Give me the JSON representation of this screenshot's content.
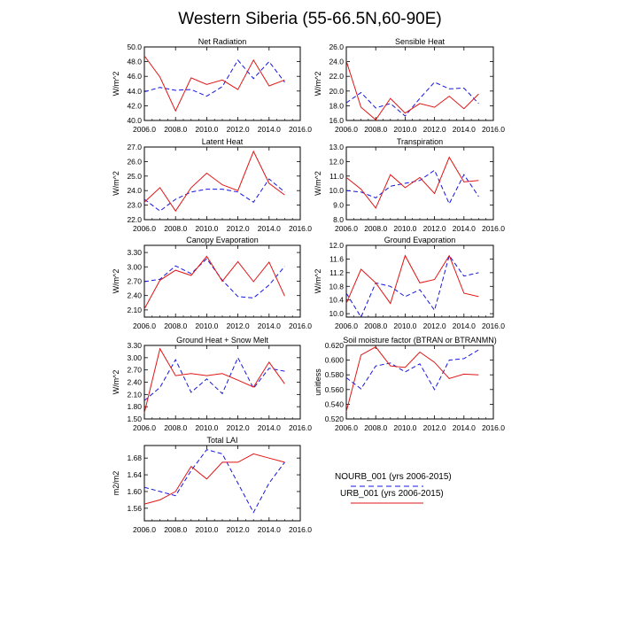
{
  "title": "Western Siberia (55-66.5N,60-90E)",
  "colors": {
    "nourb": "#1515e0",
    "urb": "#e01515",
    "axis": "#000000"
  },
  "legend": {
    "entries": [
      {
        "label": "NOURB_001 (yrs 2006-2015)",
        "color": "#1515e0",
        "dash": "dashed"
      },
      {
        "label": "URB_001 (yrs 2006-2015)",
        "color": "#e01515",
        "dash": "solid"
      }
    ]
  },
  "chart_data": [
    {
      "type": "line",
      "title": "Net Radiation",
      "ylabel": "W/m^2",
      "xlim": [
        2006,
        2016
      ],
      "ylim": [
        40,
        50
      ],
      "xticks": [
        "2006.0",
        "2008.0",
        "2010.0",
        "2012.0",
        "2014.0",
        "2016.0"
      ],
      "yticks": [
        "40.0",
        "42.0",
        "44.0",
        "46.0",
        "48.0",
        "50.0"
      ],
      "x": [
        2006,
        2007,
        2008,
        2009,
        2010,
        2011,
        2012,
        2013,
        2014,
        2015
      ],
      "series": [
        {
          "name": "NOURB_001 (yrs 2006-2015)",
          "values": [
            43.9,
            44.5,
            44.1,
            44.2,
            43.3,
            44.6,
            48.2,
            45.7,
            48.0,
            45.2
          ]
        },
        {
          "name": "URB_001 (yrs 2006-2015)",
          "values": [
            48.8,
            45.9,
            41.3,
            45.8,
            44.9,
            45.5,
            44.2,
            48.2,
            44.7,
            45.5
          ]
        }
      ]
    },
    {
      "type": "line",
      "title": "Sensible Heat",
      "ylabel": "W/m^2",
      "xlim": [
        2006,
        2016
      ],
      "ylim": [
        16,
        26
      ],
      "xticks": [
        "2006.0",
        "2008.0",
        "2010.0",
        "2012.0",
        "2014.0",
        "2016.0"
      ],
      "yticks": [
        "16.0",
        "18.0",
        "20.0",
        "22.0",
        "24.0",
        "26.0"
      ],
      "x": [
        2006,
        2007,
        2008,
        2009,
        2010,
        2011,
        2012,
        2013,
        2014,
        2015
      ],
      "series": [
        {
          "name": "NOURB_001 (yrs 2006-2015)",
          "values": [
            18.4,
            19.8,
            17.7,
            18.3,
            16.6,
            19.0,
            21.2,
            20.3,
            20.4,
            18.3
          ]
        },
        {
          "name": "URB_001 (yrs 2006-2015)",
          "values": [
            24.1,
            17.8,
            16.1,
            19.0,
            17.0,
            18.3,
            17.8,
            19.3,
            17.6,
            19.6
          ]
        }
      ]
    },
    {
      "type": "line",
      "title": "Latent Heat",
      "ylabel": "W/m^2",
      "xlim": [
        2006,
        2016
      ],
      "ylim": [
        22,
        27
      ],
      "xticks": [
        "2006.0",
        "2008.0",
        "2010.0",
        "2012.0",
        "2014.0",
        "2016.0"
      ],
      "yticks": [
        "22.0",
        "23.0",
        "24.0",
        "25.0",
        "26.0",
        "27.0"
      ],
      "x": [
        2006,
        2007,
        2008,
        2009,
        2010,
        2011,
        2012,
        2013,
        2014,
        2015
      ],
      "series": [
        {
          "name": "NOURB_001 (yrs 2006-2015)",
          "values": [
            23.4,
            22.6,
            23.4,
            23.9,
            24.1,
            24.1,
            23.9,
            23.2,
            24.8,
            23.9
          ]
        },
        {
          "name": "URB_001 (yrs 2006-2015)",
          "values": [
            23.2,
            24.2,
            22.6,
            24.2,
            25.2,
            24.4,
            24.0,
            26.7,
            24.5,
            23.7
          ]
        }
      ]
    },
    {
      "type": "line",
      "title": "Transpiration",
      "ylabel": "W/m^2",
      "xlim": [
        2006,
        2016
      ],
      "ylim": [
        8,
        13
      ],
      "xticks": [
        "2006.0",
        "2008.0",
        "2010.0",
        "2012.0",
        "2014.0",
        "2016.0"
      ],
      "yticks": [
        "8.0",
        "9.0",
        "10.0",
        "11.0",
        "12.0",
        "13.0"
      ],
      "x": [
        2006,
        2007,
        2008,
        2009,
        2010,
        2011,
        2012,
        2013,
        2014,
        2015
      ],
      "series": [
        {
          "name": "NOURB_001 (yrs 2006-2015)",
          "values": [
            10.0,
            9.9,
            9.5,
            10.3,
            10.5,
            10.7,
            11.4,
            9.1,
            11.1,
            9.6
          ]
        },
        {
          "name": "URB_001 (yrs 2006-2015)",
          "values": [
            10.9,
            10.1,
            8.8,
            11.1,
            10.2,
            10.9,
            9.8,
            12.3,
            10.6,
            10.7
          ]
        }
      ]
    },
    {
      "type": "line",
      "title": "Canopy Evaporation",
      "ylabel": "W/m^2",
      "xlim": [
        2006,
        2016
      ],
      "ylim": [
        1.95,
        3.45
      ],
      "xticks": [
        "2006.0",
        "2008.0",
        "2010.0",
        "2012.0",
        "2014.0",
        "2016.0"
      ],
      "yticks": [
        "2.10",
        "2.40",
        "2.70",
        "3.00",
        "3.30"
      ],
      "yticks_values": [
        2.1,
        2.4,
        2.7,
        3.0,
        3.3
      ],
      "x": [
        2006,
        2007,
        2008,
        2009,
        2010,
        2011,
        2012,
        2013,
        2014,
        2015
      ],
      "series": [
        {
          "name": "NOURB_001 (yrs 2006-2015)",
          "values": [
            2.69,
            2.74,
            3.02,
            2.86,
            3.17,
            2.72,
            2.38,
            2.35,
            2.62,
            3.01
          ]
        },
        {
          "name": "URB_001 (yrs 2006-2015)",
          "values": [
            2.12,
            2.72,
            2.93,
            2.82,
            3.22,
            2.7,
            3.11,
            2.69,
            3.1,
            2.39
          ]
        }
      ]
    },
    {
      "type": "line",
      "title": "Ground Evaporation",
      "ylabel": "W/m^2",
      "xlim": [
        2006,
        2016
      ],
      "ylim": [
        9.9,
        12.0
      ],
      "xticks": [
        "2006.0",
        "2008.0",
        "2010.0",
        "2012.0",
        "2014.0",
        "2016.0"
      ],
      "yticks": [
        "10.0",
        "10.4",
        "10.8",
        "11.2",
        "11.6",
        "12.0"
      ],
      "yticks_values": [
        10.0,
        10.4,
        10.8,
        11.2,
        11.6,
        12.0
      ],
      "x": [
        2006,
        2007,
        2008,
        2009,
        2010,
        2011,
        2012,
        2013,
        2014,
        2015
      ],
      "series": [
        {
          "name": "NOURB_001 (yrs 2006-2015)",
          "values": [
            10.6,
            9.9,
            10.9,
            10.8,
            10.5,
            10.7,
            10.1,
            11.7,
            11.1,
            11.2
          ]
        },
        {
          "name": "URB_001 (yrs 2006-2015)",
          "values": [
            10.3,
            11.3,
            10.9,
            10.3,
            11.7,
            10.9,
            11.0,
            11.7,
            10.6,
            10.5
          ]
        }
      ]
    },
    {
      "type": "line",
      "title": "Ground Heat + Snow Melt",
      "ylabel": "W/m^2",
      "xlim": [
        2006,
        2016
      ],
      "ylim": [
        1.5,
        3.3
      ],
      "xticks": [
        "2006.0",
        "2008.0",
        "2010.0",
        "2012.0",
        "2014.0",
        "2016.0"
      ],
      "yticks": [
        "1.50",
        "1.80",
        "2.10",
        "2.40",
        "2.70",
        "3.00",
        "3.30"
      ],
      "yticks_values": [
        1.5,
        1.8,
        2.1,
        2.4,
        2.7,
        3.0,
        3.3
      ],
      "x": [
        2006,
        2007,
        2008,
        2009,
        2010,
        2011,
        2012,
        2013,
        2014,
        2015
      ],
      "series": [
        {
          "name": "NOURB_001 (yrs 2006-2015)",
          "values": [
            1.95,
            2.27,
            2.95,
            2.15,
            2.48,
            2.12,
            3.0,
            2.25,
            2.74,
            2.67
          ]
        },
        {
          "name": "URB_001 (yrs 2006-2015)",
          "values": [
            1.65,
            3.22,
            2.56,
            2.61,
            2.56,
            2.61,
            2.45,
            2.28,
            2.89,
            2.36
          ]
        }
      ]
    },
    {
      "type": "line",
      "title": "Soil moisture factor (BTRAN or BTRANMN)",
      "ylabel": "unitless",
      "xlim": [
        2006,
        2016
      ],
      "ylim": [
        0.52,
        0.62
      ],
      "xticks": [
        "2006.0",
        "2008.0",
        "2010.0",
        "2012.0",
        "2014.0",
        "2016.0"
      ],
      "yticks": [
        "0.520",
        "0.540",
        "0.560",
        "0.580",
        "0.600",
        "0.620"
      ],
      "yticks_values": [
        0.52,
        0.54,
        0.56,
        0.58,
        0.6,
        0.62
      ],
      "x": [
        2006,
        2007,
        2008,
        2009,
        2010,
        2011,
        2012,
        2013,
        2014,
        2015
      ],
      "series": [
        {
          "name": "NOURB_001 (yrs 2006-2015)",
          "values": [
            0.576,
            0.561,
            0.592,
            0.596,
            0.584,
            0.595,
            0.56,
            0.6,
            0.602,
            0.614
          ]
        },
        {
          "name": "URB_001 (yrs 2006-2015)",
          "values": [
            0.53,
            0.607,
            0.618,
            0.592,
            0.59,
            0.611,
            0.597,
            0.575,
            0.581,
            0.58
          ]
        }
      ]
    },
    {
      "type": "line",
      "title": "Total LAI",
      "ylabel": "m2/m2",
      "xlim": [
        2006,
        2016
      ],
      "ylim": [
        1.53,
        1.71
      ],
      "xticks": [
        "2006.0",
        "2008.0",
        "2010.0",
        "2012.0",
        "2014.0",
        "2016.0"
      ],
      "yticks": [
        "1.56",
        "1.60",
        "1.64",
        "1.68"
      ],
      "yticks_values": [
        1.56,
        1.6,
        1.64,
        1.68
      ],
      "x": [
        2006,
        2007,
        2008,
        2009,
        2010,
        2011,
        2012,
        2013,
        2014,
        2015
      ],
      "series": [
        {
          "name": "NOURB_001 (yrs 2006-2015)",
          "values": [
            1.61,
            1.6,
            1.59,
            1.65,
            1.7,
            1.69,
            1.62,
            1.55,
            1.62,
            1.67
          ]
        },
        {
          "name": "URB_001 (yrs 2006-2015)",
          "values": [
            1.57,
            1.58,
            1.6,
            1.66,
            1.63,
            1.67,
            1.67,
            1.69,
            1.68,
            1.67
          ]
        }
      ]
    }
  ]
}
